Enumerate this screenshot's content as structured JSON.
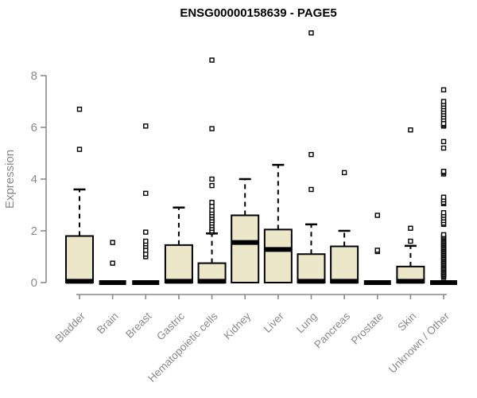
{
  "chart_data": {
    "type": "boxplot",
    "title": "ENSG00000158639 - PAGE5",
    "ylabel": "Expression",
    "xlabel": "",
    "y_axis": {
      "ticks": [
        0,
        2,
        4,
        6,
        8
      ],
      "range": [
        0,
        9.8
      ],
      "grid": false
    },
    "legend": "none",
    "categories": [
      "Bladder",
      "Brain",
      "Breast",
      "Gastric",
      "Hematopoietic cells",
      "Kidney",
      "Liver",
      "Lung",
      "Pancreas",
      "Prostate",
      "Skin",
      "Unknown / Other"
    ],
    "series": [
      {
        "name": "Bladder",
        "q1": 0,
        "median": 0.05,
        "q3": 1.8,
        "whisker_low": 0,
        "whisker_high": 3.6,
        "outliers": [
          5.15,
          6.7
        ]
      },
      {
        "name": "Brain",
        "q1": 0,
        "median": 0,
        "q3": 0,
        "whisker_low": 0,
        "whisker_high": 0,
        "outliers": [
          0.75,
          1.55
        ]
      },
      {
        "name": "Breast",
        "q1": 0,
        "median": 0,
        "q3": 0,
        "whisker_low": 0,
        "whisker_high": 0,
        "outliers": [
          1.0,
          1.1,
          1.25,
          1.4,
          1.5,
          1.6,
          1.95,
          3.45,
          6.05
        ]
      },
      {
        "name": "Gastric",
        "q1": 0,
        "median": 0.05,
        "q3": 1.45,
        "whisker_low": 0,
        "whisker_high": 2.9,
        "outliers": []
      },
      {
        "name": "Hematopoietic cells",
        "q1": 0,
        "median": 0.05,
        "q3": 0.75,
        "whisker_low": 0,
        "whisker_high": 1.9,
        "outliers": [
          1.95,
          2.0,
          2.1,
          2.2,
          2.3,
          2.4,
          2.5,
          2.6,
          2.7,
          2.8,
          2.95,
          3.1,
          3.75,
          4.0,
          5.95,
          8.6
        ]
      },
      {
        "name": "Kidney",
        "q1": 0,
        "median": 1.55,
        "q3": 2.6,
        "whisker_low": 0,
        "whisker_high": 4.0,
        "outliers": []
      },
      {
        "name": "Liver",
        "q1": 0,
        "median": 1.28,
        "q3": 2.05,
        "whisker_low": 0,
        "whisker_high": 4.55,
        "outliers": []
      },
      {
        "name": "Lung",
        "q1": 0,
        "median": 0.05,
        "q3": 1.1,
        "whisker_low": 0,
        "whisker_high": 2.25,
        "outliers": [
          3.6,
          4.95,
          9.65
        ]
      },
      {
        "name": "Pancreas",
        "q1": 0,
        "median": 0.05,
        "q3": 1.4,
        "whisker_low": 0,
        "whisker_high": 2.0,
        "outliers": [
          4.25
        ]
      },
      {
        "name": "Prostate",
        "q1": 0,
        "median": 0,
        "q3": 0,
        "whisker_low": 0,
        "whisker_high": 0,
        "outliers": [
          1.2,
          1.25,
          2.6
        ]
      },
      {
        "name": "Skin",
        "q1": 0,
        "median": 0.05,
        "q3": 0.62,
        "whisker_low": 0,
        "whisker_high": 1.42,
        "outliers": [
          1.6,
          2.1,
          5.9
        ]
      },
      {
        "name": "Unknown / Other",
        "q1": 0,
        "median": 0,
        "q3": 0,
        "whisker_low": 0,
        "whisker_high": 0,
        "outliers": [
          0.2,
          0.25,
          0.3,
          0.35,
          0.4,
          0.45,
          0.5,
          0.55,
          0.6,
          0.65,
          0.7,
          0.75,
          0.8,
          0.85,
          0.9,
          0.95,
          1.0,
          1.05,
          1.1,
          1.15,
          1.2,
          1.25,
          1.3,
          1.35,
          1.4,
          1.45,
          1.5,
          1.55,
          1.6,
          1.65,
          1.7,
          1.75,
          1.8,
          1.85,
          2.25,
          2.3,
          2.4,
          2.5,
          2.6,
          2.7,
          3.05,
          3.1,
          3.2,
          3.3,
          4.2,
          4.25,
          4.3,
          5.2,
          5.45,
          6.05,
          6.1,
          6.15,
          6.3,
          6.4,
          6.5,
          6.6,
          6.7,
          6.8,
          6.9,
          7.0,
          7.45
        ]
      }
    ],
    "colors": {
      "box_fill": "#ece7c8",
      "box_stroke": "#000000",
      "median": "#000000",
      "whisker": "#000000",
      "outlier_stroke": "#000000",
      "axis": "#8a8a8a",
      "tick_label": "#8a8a8a",
      "title": "#000000",
      "background": "#ffffff"
    }
  }
}
